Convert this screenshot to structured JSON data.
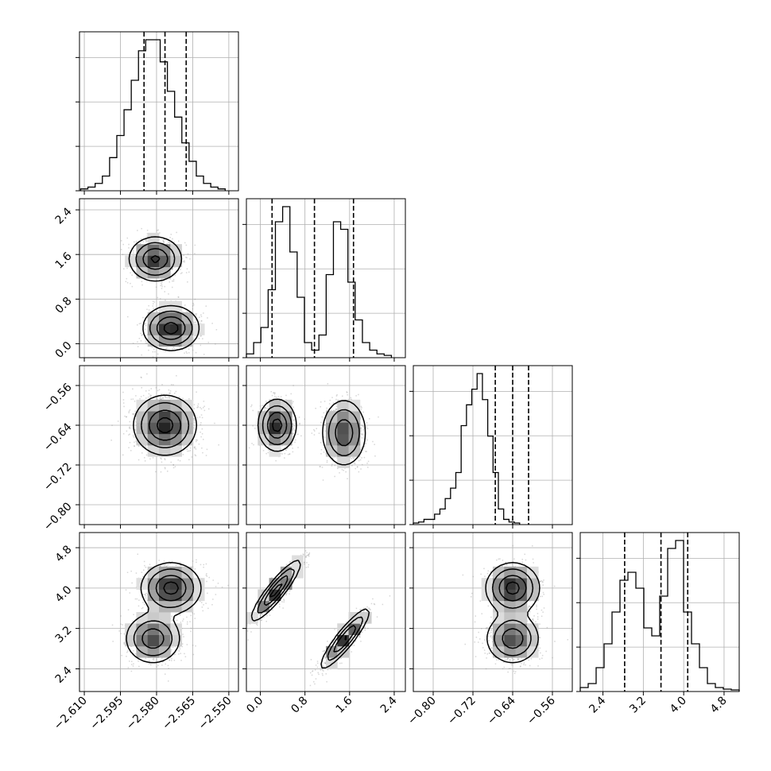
{
  "chart_data": {
    "type": "corner",
    "parameters": [
      {
        "label": "",
        "range": [
          -2.612,
          -2.546
        ],
        "ticks": [
          -2.61,
          -2.595,
          -2.58,
          -2.565,
          -2.55
        ],
        "tick_labels": [
          "−2.610",
          "−2.595",
          "−2.580",
          "−2.565",
          "−2.550"
        ],
        "quantiles": [
          -2.5852,
          -2.5765,
          -2.5677
        ]
      },
      {
        "label": "",
        "range": [
          -0.25,
          2.6
        ],
        "ticks": [
          0.0,
          0.8,
          1.6,
          2.4
        ],
        "tick_labels": [
          "0.0",
          "0.8",
          "1.6",
          "2.4"
        ],
        "quantiles": [
          0.21,
          0.97,
          1.67
        ]
      },
      {
        "label": "",
        "range": [
          -0.84,
          -0.52
        ],
        "ticks": [
          -0.8,
          -0.72,
          -0.64,
          -0.56
        ],
        "tick_labels": [
          "−0.80",
          "−0.72",
          "−0.64",
          "−0.56"
        ],
        "quantiles": [
          -0.675,
          -0.64,
          -0.608
        ]
      },
      {
        "label": "",
        "range": [
          1.95,
          5.1
        ],
        "ticks": [
          2.4,
          3.2,
          4.0,
          4.8
        ],
        "tick_labels": [
          "2.4",
          "3.2",
          "4.0",
          "4.8"
        ],
        "quantiles": [
          2.83,
          3.55,
          4.08
        ]
      }
    ],
    "histograms": [
      {
        "param": 0,
        "bin_start": -2.6115,
        "bin_width": 0.003,
        "counts": [
          0.5,
          1,
          2,
          4,
          9,
          15,
          22,
          30,
          38,
          41,
          41,
          35,
          27,
          20,
          13,
          8,
          4,
          2,
          1,
          0.5
        ]
      },
      {
        "param": 1,
        "bin_start": -0.25,
        "bin_width": 0.13,
        "counts": [
          0.5,
          2,
          4,
          9,
          18,
          20,
          14,
          8,
          2,
          1,
          3,
          11,
          18,
          17,
          10,
          5,
          2,
          1,
          0.5,
          0.3
        ]
      },
      {
        "param": 2,
        "bin_start": -0.84,
        "bin_width": 0.0107,
        "counts": [
          0.3,
          0.5,
          1,
          1,
          2,
          3,
          5,
          7,
          10,
          19,
          23,
          26,
          29,
          24,
          17,
          10,
          3,
          1,
          0.5,
          0.3
        ]
      },
      {
        "param": 3,
        "bin_start": 1.95,
        "bin_width": 0.1575,
        "counts": [
          0.5,
          1,
          3,
          6,
          10,
          14,
          15,
          13,
          8,
          7,
          12,
          18,
          19,
          10,
          6,
          3,
          1,
          0.5,
          0.3,
          0.2
        ]
      }
    ],
    "pairs": [
      {
        "x": 0,
        "y": 1,
        "modes": [
          {
            "mx": -2.5805,
            "my": 1.52,
            "sx": 0.0055,
            "sy": 0.2,
            "rho": 0.0,
            "w": 0.48
          },
          {
            "mx": -2.574,
            "my": 0.28,
            "sx": 0.0058,
            "sy": 0.2,
            "rho": 0.0,
            "w": 0.52
          }
        ]
      },
      {
        "x": 0,
        "y": 2,
        "modes": [
          {
            "mx": -2.5765,
            "my": -0.64,
            "sx": 0.0065,
            "sy": 0.03,
            "rho": 0.0,
            "w": 1.0
          }
        ]
      },
      {
        "x": 1,
        "y": 2,
        "modes": [
          {
            "mx": 0.3,
            "my": -0.64,
            "sx": 0.17,
            "sy": 0.026,
            "rho": 0.0,
            "w": 0.55
          },
          {
            "mx": 1.5,
            "my": -0.655,
            "sx": 0.2,
            "sy": 0.034,
            "rho": 0.0,
            "w": 0.45
          }
        ]
      },
      {
        "x": 0,
        "y": 3,
        "modes": [
          {
            "mx": -2.574,
            "my": 4.0,
            "sx": 0.0062,
            "sy": 0.25,
            "rho": 0.0,
            "w": 0.55
          },
          {
            "mx": -2.5815,
            "my": 3.0,
            "sx": 0.0058,
            "sy": 0.25,
            "rho": 0.0,
            "w": 0.45
          }
        ]
      },
      {
        "x": 1,
        "y": 3,
        "modes": [
          {
            "mx": 0.28,
            "my": 3.95,
            "sx": 0.22,
            "sy": 0.3,
            "rho": 0.9,
            "w": 0.52
          },
          {
            "mx": 1.52,
            "my": 3.0,
            "sx": 0.22,
            "sy": 0.3,
            "rho": 0.9,
            "w": 0.48
          }
        ]
      },
      {
        "x": 2,
        "y": 3,
        "modes": [
          {
            "mx": -0.64,
            "my": 4.0,
            "sx": 0.027,
            "sy": 0.25,
            "rho": 0.0,
            "w": 0.55
          },
          {
            "mx": -0.64,
            "my": 3.0,
            "sx": 0.027,
            "sy": 0.25,
            "rho": 0.0,
            "w": 0.45
          }
        ]
      }
    ],
    "contour_levels": [
      0.5,
      1.0,
      1.5,
      2.0
    ],
    "grid": true,
    "colors": {
      "ink": "#000000",
      "grid": "#b0b0b0",
      "scatter": "#8c8c8c"
    }
  }
}
